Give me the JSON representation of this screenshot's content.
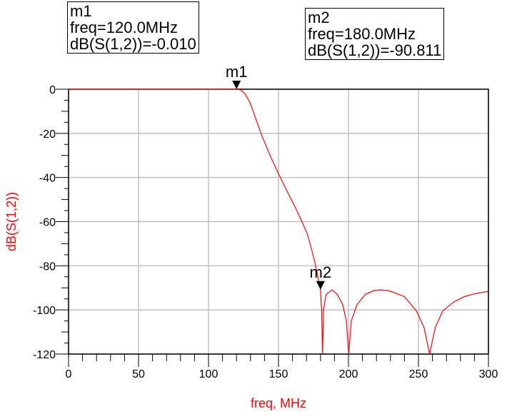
{
  "chart_data": {
    "type": "line",
    "xlabel": "freq, MHz",
    "ylabel": "dB(S(1,2))",
    "xlim": [
      0,
      300
    ],
    "ylim": [
      -120,
      0
    ],
    "xticks": [
      0,
      50,
      100,
      150,
      200,
      250,
      300
    ],
    "yticks": [
      0,
      -20,
      -40,
      -60,
      -80,
      -100,
      -120
    ],
    "grid": true,
    "colors": {
      "series": "#ff0000",
      "grid": "#c0c0c0",
      "axis_label": "#ff0000"
    },
    "series": [
      {
        "x": [
          0,
          120,
          122.8,
          126,
          129.6,
          133,
          138.1,
          144,
          150,
          156,
          161.9,
          166,
          170.4,
          173,
          175.5,
          177.5,
          179.4,
          180,
          180.8,
          181.5,
          182.2,
          184,
          188.3,
          192,
          195.9,
          198.5,
          200.2,
          202,
          206.1,
          212,
          218,
          223.1,
          230,
          240,
          248.6,
          254,
          258,
          262,
          267.3,
          275,
          282.7,
          290,
          299.7
        ],
        "y": [
          0,
          -0.01,
          -0.3,
          -2,
          -5.9,
          -12,
          -21,
          -30,
          -38.3,
          -46,
          -53.4,
          -59,
          -65.2,
          -71,
          -77.1,
          -83,
          -88.9,
          -90.811,
          -100,
          -120,
          -100,
          -93,
          -90.9,
          -93,
          -97.6,
          -105,
          -120,
          -105,
          -97.6,
          -93,
          -91.3,
          -90.9,
          -91.5,
          -94,
          -100.5,
          -108,
          -120,
          -108,
          -100.5,
          -96.5,
          -94,
          -92.7,
          -91.6
        ]
      }
    ]
  },
  "markers": [
    {
      "name": "m1",
      "freq_line": "freq=120.0MHz",
      "value_line": "dB(S(1,2))=-0.010",
      "x": 120,
      "y": -0.01
    },
    {
      "name": "m2",
      "freq_line": "freq=180.0MHz",
      "value_line": "dB(S(1,2))=-90.811",
      "x": 180,
      "y": -90.811
    }
  ]
}
